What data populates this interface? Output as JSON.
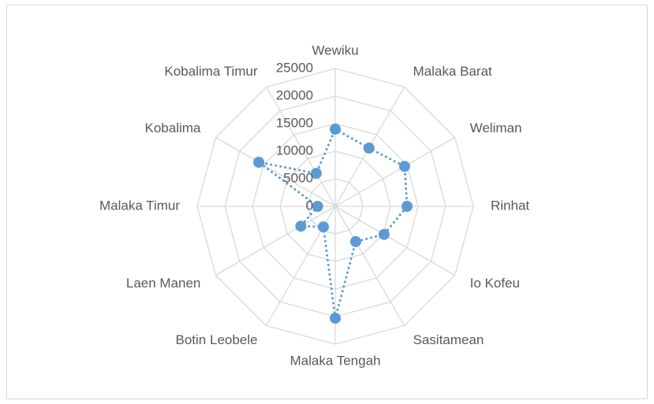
{
  "chart_data": {
    "type": "radar",
    "categories": [
      "Wewiku",
      "Malaka Barat",
      "Weliman",
      "Rinhat",
      "Io Kofeu",
      "Sasitamean",
      "Malaka Tengah",
      "Botin Leobele",
      "Laen Manen",
      "Malaka Timur",
      "Kobalima",
      "Kobalima Timur"
    ],
    "series": [
      {
        "color": "#5b9bd5",
        "values": [
          14000,
          12200,
          14500,
          13000,
          10200,
          7400,
          20300,
          4300,
          7200,
          3200,
          16000,
          6900
        ]
      }
    ],
    "ylim": [
      0,
      25000
    ],
    "yticks": [
      0,
      5000,
      10000,
      15000,
      20000,
      25000
    ],
    "grid": true
  }
}
